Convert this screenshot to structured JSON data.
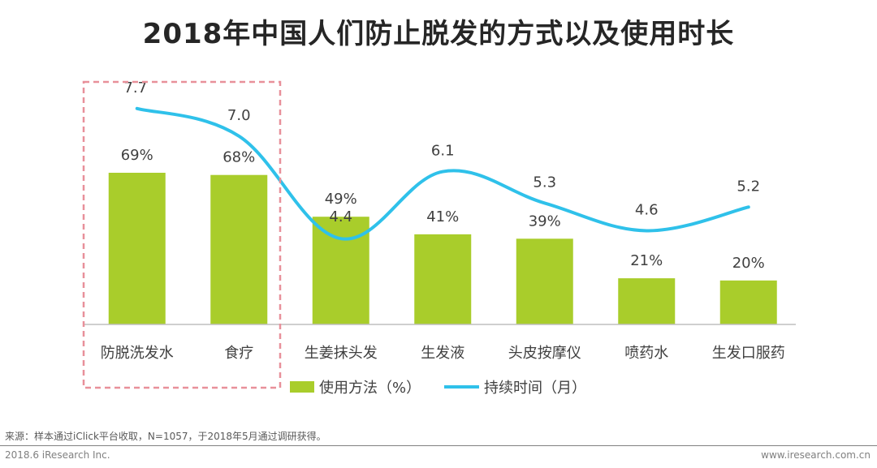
{
  "title": "2018年中国人们防止脱发的方式以及使用时长",
  "chart_data": {
    "type": "bar",
    "categories": [
      "防脱洗发水",
      "食疗",
      "生姜抹头发",
      "生发液",
      "头皮按摩仪",
      "喷药水",
      "生发口服药"
    ],
    "series": [
      {
        "name": "使用方法（%）",
        "type": "bar",
        "values": [
          69,
          68,
          49,
          41,
          39,
          21,
          20
        ],
        "labels": [
          "69%",
          "68%",
          "49%",
          "41%",
          "39%",
          "21%",
          "20%"
        ],
        "color": "#a9cd2b"
      },
      {
        "name": "持续时间（月）",
        "type": "line",
        "values": [
          7.7,
          7.0,
          4.4,
          6.1,
          5.3,
          4.6,
          5.2
        ],
        "labels": [
          "7.7",
          "7.0",
          "4.4",
          "6.1",
          "5.3",
          "4.6",
          "5.2"
        ],
        "color": "#2fc1ea"
      }
    ],
    "highlight_categories": [
      "防脱洗发水",
      "食疗"
    ],
    "highlight_color": "#e8909a",
    "legend_position": "bottom"
  },
  "note": "来源：样本通过iClick平台收取，N=1057，于2018年5月通过调研获得。",
  "footer": {
    "left": "2018.6 iResearch Inc.",
    "right": "www.iresearch.com.cn"
  }
}
